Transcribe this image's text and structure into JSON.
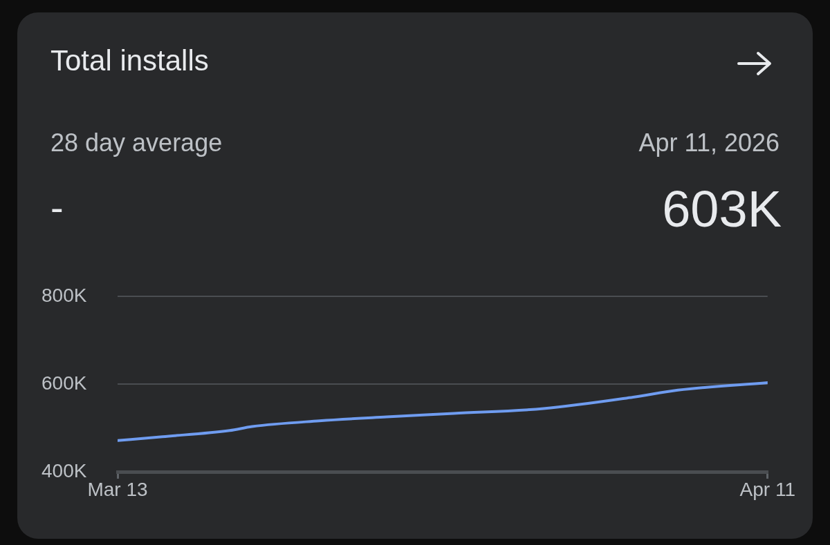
{
  "chart_data": {
    "type": "line",
    "title": "Total installs",
    "annotations": [
      "28 day average",
      "-",
      "Apr 11, 2026",
      "603K"
    ],
    "x": [
      "2026-03-13",
      "2026-03-15",
      "2026-03-18",
      "2026-03-19",
      "2026-03-22",
      "2026-03-25",
      "2026-03-28",
      "2026-04-01",
      "2026-04-05",
      "2026-04-07",
      "2026-04-11"
    ],
    "series": [
      {
        "color": "#6f9cf0",
        "values": [
          471000,
          480000,
          494000,
          503000,
          516000,
          525000,
          533000,
          544000,
          570000,
          586000,
          603000
        ]
      }
    ],
    "xlim": [
      "2026-03-13",
      "2026-04-11"
    ],
    "xticks": [
      {
        "value": "2026-03-13",
        "label": "Mar 13"
      },
      {
        "value": "2026-04-11",
        "label": "Apr 11"
      }
    ],
    "ylim": [
      400000,
      800000
    ],
    "yticks": [
      {
        "value": 400000,
        "label": "400K"
      },
      {
        "value": 600000,
        "label": "600K"
      },
      {
        "value": 800000,
        "label": "800K"
      }
    ],
    "grid": "y",
    "legend": false,
    "marker": "none",
    "line_style": "solid"
  }
}
